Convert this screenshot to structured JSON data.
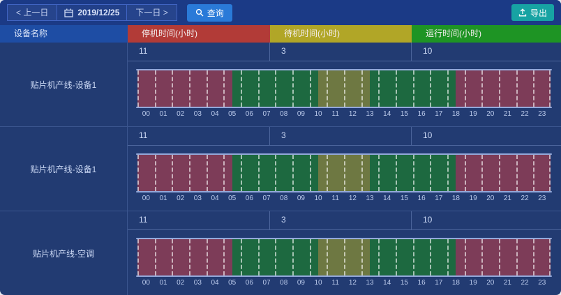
{
  "toolbar": {
    "prev_day": "< 上一日",
    "date": "2019/12/25",
    "next_day": "下一日 >",
    "query": "查询",
    "export": "导出"
  },
  "header": {
    "device_column": "设备名称",
    "status_columns": [
      {
        "key": "stop",
        "label": "停机时间(小时)",
        "color": "#b23b37"
      },
      {
        "key": "standby",
        "label": "待机时间(小时)",
        "color": "#b1a627"
      },
      {
        "key": "run",
        "label": "运行时间(小时)",
        "color": "#1e9424"
      }
    ]
  },
  "timeline": {
    "hours": [
      "00",
      "01",
      "02",
      "03",
      "04",
      "05",
      "06",
      "07",
      "08",
      "09",
      "10",
      "11",
      "12",
      "13",
      "14",
      "15",
      "16",
      "17",
      "18",
      "19",
      "20",
      "21",
      "22",
      "23"
    ],
    "state_colors": {
      "stop": "#7d3c58",
      "run": "#1d6940",
      "standby": "#6e7842"
    }
  },
  "rows": [
    {
      "device": "贴片机产线-设备1",
      "hours_summary": {
        "stop": "11",
        "standby": "3",
        "run": "10"
      },
      "segments": [
        {
          "state": "stop",
          "start": 0,
          "end": 5.5
        },
        {
          "state": "run",
          "start": 5.5,
          "end": 10.5
        },
        {
          "state": "standby",
          "start": 10.5,
          "end": 13.5
        },
        {
          "state": "run",
          "start": 13.5,
          "end": 18.5
        },
        {
          "state": "stop",
          "start": 18.5,
          "end": 24
        }
      ]
    },
    {
      "device": "贴片机产线-设备1",
      "hours_summary": {
        "stop": "11",
        "standby": "3",
        "run": "10"
      },
      "segments": [
        {
          "state": "stop",
          "start": 0,
          "end": 5.5
        },
        {
          "state": "run",
          "start": 5.5,
          "end": 10.5
        },
        {
          "state": "standby",
          "start": 10.5,
          "end": 13.5
        },
        {
          "state": "run",
          "start": 13.5,
          "end": 18.5
        },
        {
          "state": "stop",
          "start": 18.5,
          "end": 24
        }
      ]
    },
    {
      "device": "贴片机产线-空调",
      "hours_summary": {
        "stop": "11",
        "standby": "3",
        "run": "10"
      },
      "segments": [
        {
          "state": "stop",
          "start": 0,
          "end": 5.5
        },
        {
          "state": "run",
          "start": 5.5,
          "end": 10.5
        },
        {
          "state": "standby",
          "start": 10.5,
          "end": 13.5
        },
        {
          "state": "run",
          "start": 13.5,
          "end": 18.5
        },
        {
          "state": "stop",
          "start": 18.5,
          "end": 24
        }
      ]
    }
  ],
  "colors": {
    "toolbar_background": "#1b3a86",
    "body_background": "#223b72",
    "device_header_background": "#1e4da4",
    "query_button": "#2a7ad8",
    "export_button": "#17a3a3",
    "axis_line": "#93a8da"
  }
}
